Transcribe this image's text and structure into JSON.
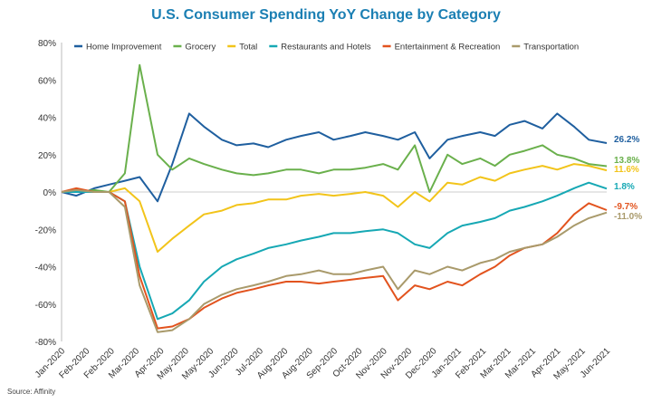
{
  "chart_data": {
    "type": "line",
    "title": "U.S. Consumer Spending YoY Change by Category",
    "source": "Source: Affinity",
    "xlabel": "",
    "ylabel": "",
    "ylim": [
      -80,
      80
    ],
    "y_ticks": [
      "80%",
      "60%",
      "40%",
      "20%",
      "0%",
      "-20%",
      "-40%",
      "-60%",
      "-80%"
    ],
    "x_tick_labels": [
      "Jan-2020",
      "Feb-2020",
      "Feb-2020",
      "Mar-2020",
      "Apr-2020",
      "May-2020",
      "May-2020",
      "Jun-2020",
      "Jul-2020",
      "Aug-2020",
      "Aug-2020",
      "Sep-2020",
      "Oct-2020",
      "Nov-2020",
      "Nov-2020",
      "Dec-2020",
      "Jan-2021",
      "Feb-2021",
      "Mar-2021",
      "Mar-2021",
      "Apr-2021",
      "May-2021",
      "Jun-2021"
    ],
    "grid": false,
    "legend": "top",
    "x": [
      "2020-01-01",
      "2020-01-15",
      "2020-02-01",
      "2020-02-15",
      "2020-03-01",
      "2020-03-15",
      "2020-04-01",
      "2020-04-15",
      "2020-05-01",
      "2020-05-15",
      "2020-06-01",
      "2020-06-15",
      "2020-07-01",
      "2020-07-15",
      "2020-08-01",
      "2020-08-15",
      "2020-09-01",
      "2020-09-15",
      "2020-10-01",
      "2020-10-15",
      "2020-11-01",
      "2020-11-15",
      "2020-12-01",
      "2020-12-15",
      "2021-01-01",
      "2021-01-15",
      "2021-02-01",
      "2021-02-15",
      "2021-03-01",
      "2021-03-15",
      "2021-04-01",
      "2021-04-15",
      "2021-05-01",
      "2021-05-15",
      "2021-06-01"
    ],
    "series": [
      {
        "name": "Home Improvement",
        "color": "#1f5f9f",
        "end_label": "26.2%",
        "values": [
          0,
          -2,
          2,
          4,
          6,
          8,
          -5,
          15,
          42,
          35,
          28,
          25,
          26,
          24,
          28,
          30,
          32,
          28,
          30,
          32,
          30,
          28,
          32,
          18,
          28,
          30,
          32,
          30,
          36,
          38,
          34,
          42,
          35,
          28,
          26.2
        ]
      },
      {
        "name": "Grocery",
        "color": "#6ab04c",
        "end_label": "13.8%",
        "values": [
          0,
          0,
          1,
          0,
          10,
          68,
          20,
          12,
          18,
          15,
          12,
          10,
          9,
          10,
          12,
          12,
          10,
          12,
          12,
          13,
          15,
          12,
          25,
          0,
          20,
          15,
          18,
          14,
          20,
          22,
          25,
          20,
          18,
          15,
          13.8
        ]
      },
      {
        "name": "Total",
        "color": "#f2c41a",
        "end_label": "11.6%",
        "values": [
          0,
          0,
          0,
          0,
          2,
          -5,
          -32,
          -25,
          -18,
          -12,
          -10,
          -7,
          -6,
          -4,
          -4,
          -2,
          -1,
          -2,
          -1,
          0,
          -2,
          -8,
          0,
          -5,
          5,
          4,
          8,
          6,
          10,
          12,
          14,
          12,
          15,
          14,
          11.6
        ]
      },
      {
        "name": "Restaurants and Hotels",
        "color": "#16a8b4",
        "end_label": "1.8%",
        "values": [
          0,
          0,
          0,
          0,
          -5,
          -40,
          -68,
          -65,
          -58,
          -48,
          -40,
          -36,
          -33,
          -30,
          -28,
          -26,
          -24,
          -22,
          -22,
          -21,
          -20,
          -22,
          -28,
          -30,
          -22,
          -18,
          -16,
          -14,
          -10,
          -8,
          -5,
          -2,
          2,
          5,
          1.8
        ]
      },
      {
        "name": "Entertainment & Recreation",
        "color": "#e2531e",
        "end_label": "-9.7%",
        "values": [
          0,
          2,
          0,
          0,
          -5,
          -45,
          -73,
          -72,
          -68,
          -62,
          -57,
          -54,
          -52,
          -50,
          -48,
          -48,
          -49,
          -48,
          -47,
          -46,
          -45,
          -58,
          -50,
          -52,
          -48,
          -50,
          -44,
          -40,
          -34,
          -30,
          -28,
          -22,
          -12,
          -6,
          -9.7
        ]
      },
      {
        "name": "Transportation",
        "color": "#a99a6b",
        "end_label": "-11.0%",
        "values": [
          0,
          1,
          0,
          0,
          -8,
          -50,
          -75,
          -74,
          -68,
          -60,
          -55,
          -52,
          -50,
          -48,
          -45,
          -44,
          -42,
          -44,
          -44,
          -42,
          -40,
          -52,
          -42,
          -44,
          -40,
          -42,
          -38,
          -36,
          -32,
          -30,
          -28,
          -24,
          -18,
          -14,
          -11.0
        ]
      }
    ]
  }
}
